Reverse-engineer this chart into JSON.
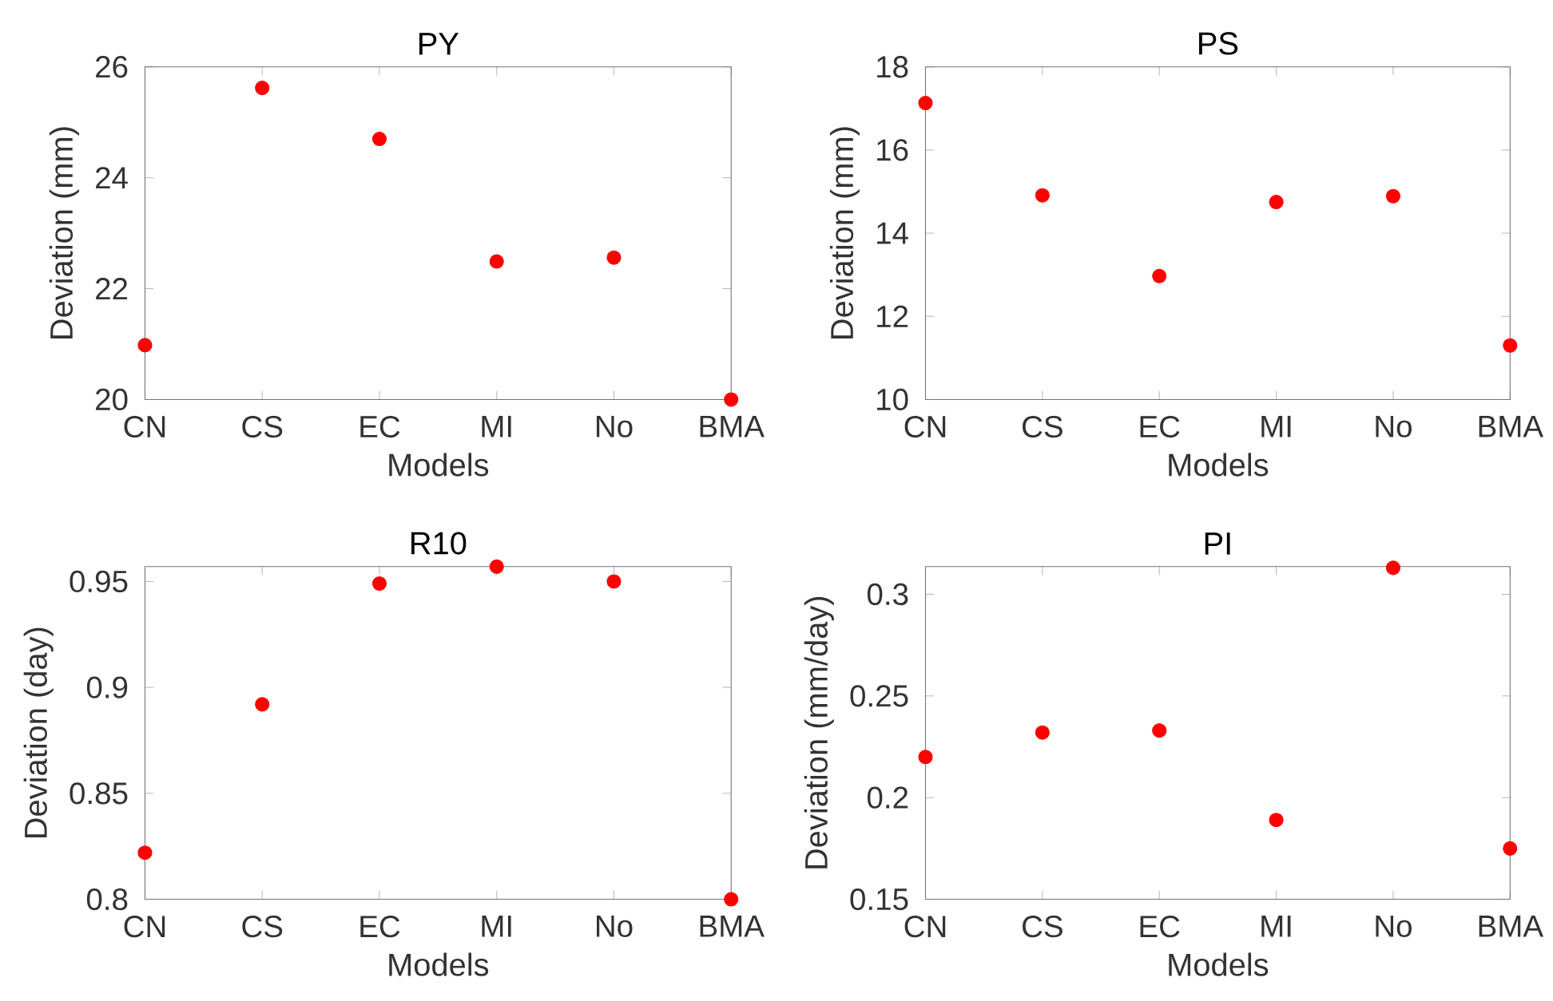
{
  "chart_data": [
    {
      "type": "scatter",
      "title": "PY",
      "xlabel": "Models",
      "ylabel": "Deviation (mm)",
      "categories": [
        "CN",
        "CS",
        "EC",
        "MI",
        "No",
        "BMA"
      ],
      "values": [
        20.98,
        25.62,
        24.7,
        22.49,
        22.56,
        20.0
      ],
      "color": "#ff0000",
      "ylim": [
        20,
        26
      ],
      "yticks": [
        20,
        22,
        24,
        26
      ]
    },
    {
      "type": "scatter",
      "title": "PS",
      "xlabel": "Models",
      "ylabel": "Deviation (mm)",
      "categories": [
        "CN",
        "CS",
        "EC",
        "MI",
        "No",
        "BMA"
      ],
      "values": [
        17.13,
        14.91,
        12.97,
        14.75,
        14.89,
        11.3
      ],
      "color": "#ff0000",
      "ylim": [
        10,
        18
      ],
      "yticks": [
        10,
        12,
        14,
        16,
        18
      ]
    },
    {
      "type": "scatter",
      "title": "R10",
      "xlabel": "Models",
      "ylabel": "Deviation (day)",
      "categories": [
        "CN",
        "CS",
        "EC",
        "MI",
        "No",
        "BMA"
      ],
      "values": [
        0.822,
        0.892,
        0.949,
        0.957,
        0.95,
        0.8
      ],
      "color": "#ff0000",
      "ylim": [
        0.8,
        0.957
      ],
      "yticks": [
        0.8,
        0.85,
        0.9,
        0.95
      ]
    },
    {
      "type": "scatter",
      "title": "PI",
      "xlabel": "Models",
      "ylabel": "Deviation (mm/day)",
      "categories": [
        "CN",
        "CS",
        "EC",
        "MI",
        "No",
        "BMA"
      ],
      "values": [
        0.22,
        0.232,
        0.233,
        0.189,
        0.313,
        0.175
      ],
      "color": "#ff0000",
      "ylim": [
        0.15,
        0.3136
      ],
      "yticks": [
        0.15,
        0.2,
        0.25,
        0.3
      ]
    }
  ]
}
